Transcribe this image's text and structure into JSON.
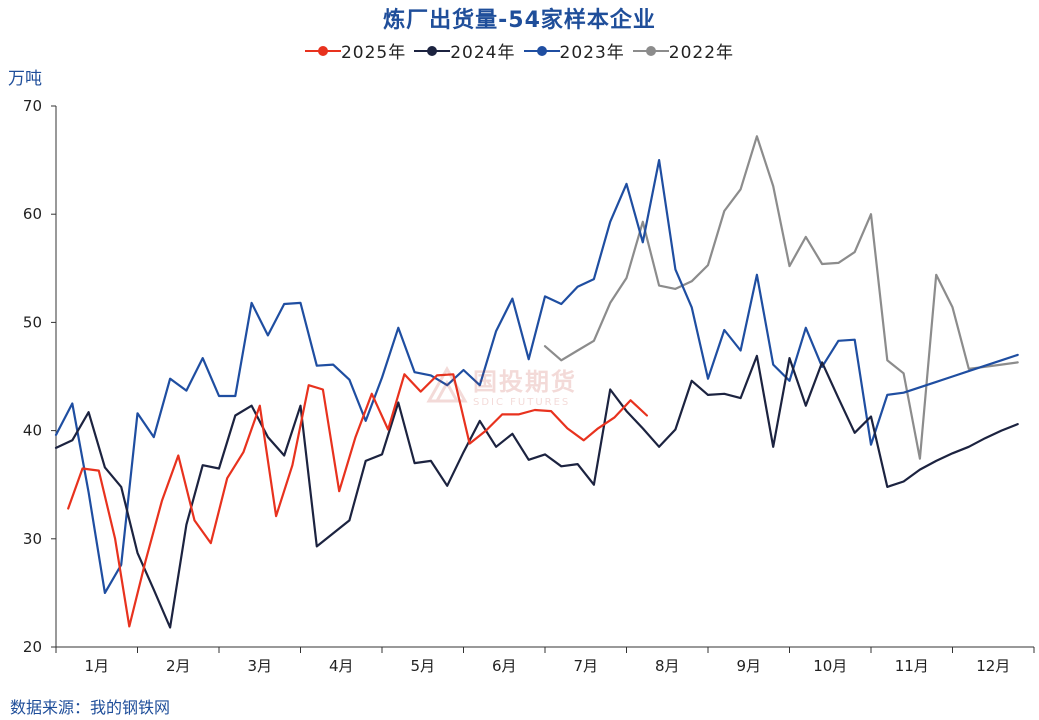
{
  "chart_data": {
    "type": "line",
    "title": "炼厂出货量-54家样本企业",
    "ylabel": "万吨",
    "xlabel": "",
    "ylim": [
      20,
      70
    ],
    "yticks": [
      20,
      30,
      40,
      50,
      60,
      70
    ],
    "xlim": [
      0,
      48
    ],
    "months": [
      "1月",
      "2月",
      "3月",
      "4月",
      "5月",
      "6月",
      "7月",
      "8月",
      "9月",
      "10月",
      "11月",
      "12月"
    ],
    "grid": false,
    "legend_position": "top-center",
    "source": "数据来源：我的钢铁网",
    "series": [
      {
        "name": "2025年",
        "color": "#e8321e",
        "x": [
          0.6,
          1.3,
          2.1,
          2.9,
          3.6,
          4.4,
          5.2,
          6.0,
          6.8,
          7.6,
          8.4,
          9.2,
          10.0,
          10.8,
          11.6,
          12.4,
          13.1,
          13.9,
          14.7,
          15.5,
          16.3,
          17.1,
          17.9,
          18.7,
          19.5,
          20.3,
          21.1,
          21.9,
          22.7,
          23.5,
          24.3,
          25.1,
          25.9,
          26.6,
          27.4,
          28.2,
          29.0
        ],
        "y": [
          32.8,
          36.5,
          36.3,
          30.0,
          21.9,
          28.0,
          33.5,
          37.7,
          31.7,
          29.6,
          35.6,
          38.0,
          42.3,
          32.1,
          36.8,
          44.2,
          43.8,
          34.4,
          39.4,
          43.4,
          40.1,
          45.2,
          43.6,
          45.1,
          45.2,
          38.8,
          40.0,
          41.5,
          41.5,
          41.9,
          41.8,
          40.2,
          39.1,
          40.2,
          41.2,
          42.8,
          41.4
        ]
      },
      {
        "name": "2024年",
        "color": "#1c2340",
        "x": [
          0.0,
          0.8,
          1.6,
          2.4,
          3.2,
          4.0,
          4.8,
          5.6,
          6.4,
          7.2,
          8.0,
          8.8,
          9.6,
          10.4,
          11.2,
          12.0,
          12.8,
          13.6,
          14.4,
          15.2,
          16.0,
          16.8,
          17.6,
          18.4,
          19.2,
          20.0,
          20.8,
          21.6,
          22.4,
          23.2,
          24.0,
          24.8,
          25.6,
          26.4,
          27.2,
          28.0,
          28.8,
          29.6,
          30.4,
          31.2,
          32.0,
          32.8,
          33.6,
          34.4,
          35.2,
          36.0,
          36.8,
          37.6,
          38.4,
          39.2,
          40.0,
          40.8,
          41.6,
          42.4,
          43.2,
          44.0,
          44.8,
          45.6,
          46.4,
          47.2
        ],
        "y": [
          38.4,
          39.1,
          41.7,
          36.6,
          34.8,
          28.7,
          25.3,
          21.8,
          31.3,
          36.8,
          36.5,
          41.4,
          42.3,
          39.4,
          37.7,
          42.3,
          29.3,
          30.5,
          31.7,
          37.2,
          37.8,
          42.6,
          37.0,
          37.2,
          34.9,
          38.0,
          40.9,
          38.5,
          39.7,
          37.3,
          37.8,
          36.7,
          36.9,
          35.0,
          43.8,
          41.8,
          40.2,
          38.5,
          40.1,
          44.6,
          43.3,
          43.4,
          43.0,
          46.9,
          38.5,
          46.7,
          42.3,
          46.3,
          43.0,
          39.8,
          41.3,
          34.8,
          35.3,
          36.4,
          37.2,
          37.9,
          38.5,
          39.3,
          40.0,
          40.6
        ]
      },
      {
        "name": "2023年",
        "color": "#1f4ea1",
        "x": [
          0.0,
          0.8,
          1.6,
          2.4,
          3.2,
          4.0,
          4.8,
          5.6,
          6.4,
          7.2,
          8.0,
          8.8,
          9.6,
          10.4,
          11.2,
          12.0,
          12.8,
          13.6,
          14.4,
          15.2,
          16.0,
          16.8,
          17.6,
          18.4,
          19.2,
          20.0,
          20.8,
          21.6,
          22.4,
          23.2,
          24.0,
          24.8,
          25.6,
          26.4,
          27.2,
          28.0,
          28.8,
          29.6,
          30.4,
          31.2,
          32.0,
          32.8,
          33.6,
          34.4,
          35.2,
          36.0,
          36.8,
          37.6,
          38.4,
          39.2,
          40.0,
          40.8,
          41.6,
          42.4,
          43.2,
          44.0,
          44.8,
          45.6,
          46.4,
          47.2
        ],
        "y": [
          39.6,
          42.5,
          34.3,
          25.0,
          27.6,
          41.6,
          39.4,
          44.8,
          43.7,
          46.7,
          43.2,
          43.2,
          51.8,
          48.8,
          51.7,
          51.8,
          46.0,
          46.1,
          44.7,
          40.9,
          44.9,
          49.5,
          45.4,
          45.1,
          44.2,
          45.6,
          44.2,
          49.2,
          52.2,
          46.6,
          52.4,
          51.7,
          53.3,
          54.0,
          59.3,
          62.8,
          57.4,
          65.0,
          54.9,
          51.4,
          44.8,
          49.3,
          47.4,
          54.4,
          46.1,
          44.6,
          49.5,
          45.9,
          48.3,
          48.4,
          38.7,
          43.3,
          43.5,
          44.0,
          44.5,
          45.0,
          45.5,
          46.0,
          46.5,
          47.0
        ]
      },
      {
        "name": "2022年",
        "color": "#8c8c8c",
        "x": [
          24.0,
          24.8,
          25.6,
          26.4,
          27.2,
          28.0,
          28.8,
          29.6,
          30.4,
          31.2,
          32.0,
          32.8,
          33.6,
          34.4,
          35.2,
          36.0,
          36.8,
          37.6,
          38.4,
          39.2,
          40.0,
          40.8,
          41.6,
          42.4,
          43.2,
          44.0,
          44.8,
          45.6,
          46.4,
          47.2
        ],
        "y": [
          47.8,
          46.5,
          47.4,
          48.3,
          51.8,
          54.1,
          59.3,
          53.4,
          53.1,
          53.8,
          55.3,
          60.3,
          62.3,
          67.2,
          62.6,
          55.2,
          57.9,
          55.4,
          55.5,
          56.5,
          60.0,
          46.5,
          45.3,
          37.4,
          54.4,
          51.4,
          45.7,
          45.9,
          46.1,
          46.3
        ]
      }
    ]
  },
  "watermark": {
    "cn": "国投期货",
    "en": "SDIC FUTURES"
  }
}
